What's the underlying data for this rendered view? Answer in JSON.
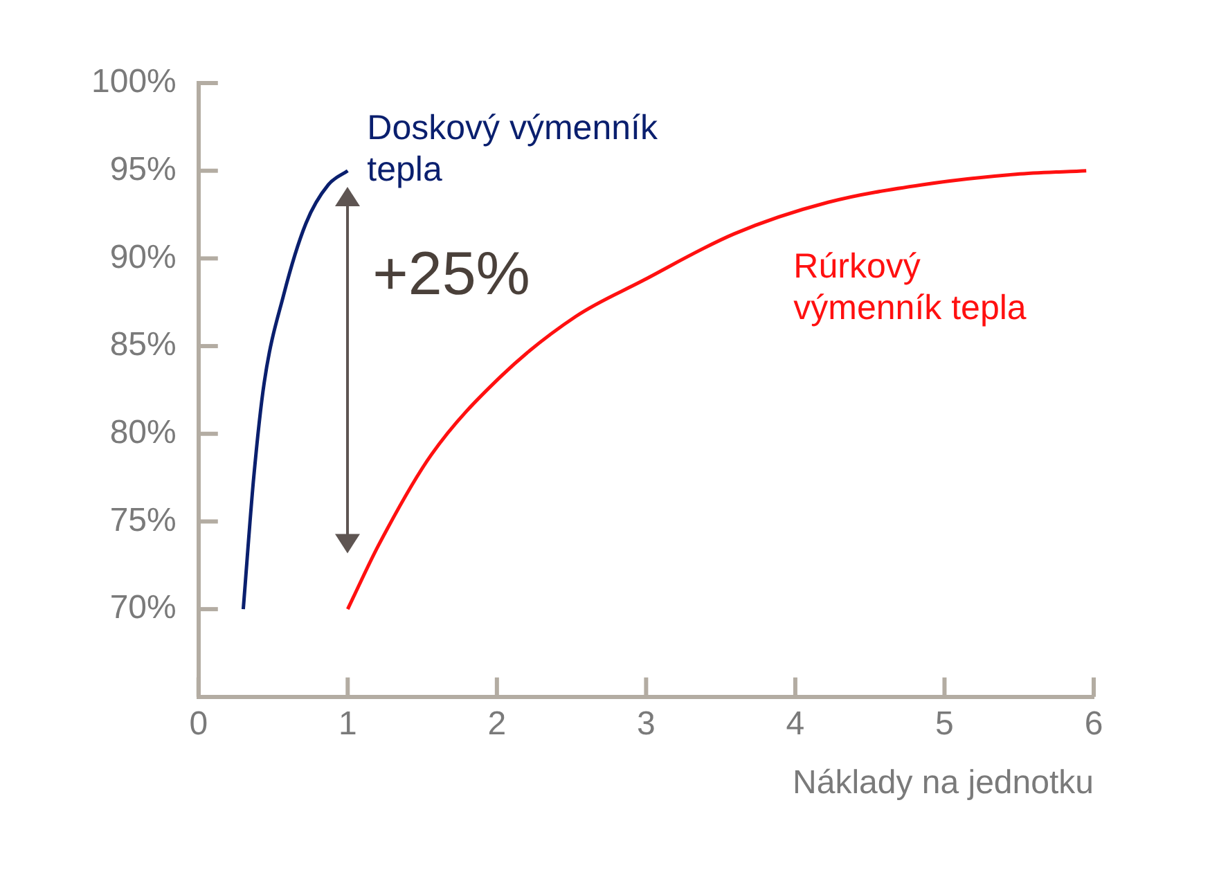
{
  "chart_data": {
    "type": "line",
    "xlabel": "Náklady na jednotku",
    "xlim": [
      0,
      6
    ],
    "xticks": [
      0,
      1,
      2,
      3,
      4,
      5,
      6
    ],
    "ylim": [
      65,
      100
    ],
    "yticks": [
      {
        "value": 70,
        "label": "70%"
      },
      {
        "value": 75,
        "label": "75%"
      },
      {
        "value": 80,
        "label": "80%"
      },
      {
        "value": 85,
        "label": "85%"
      },
      {
        "value": 90,
        "label": "90%"
      },
      {
        "value": 95,
        "label": "95%"
      },
      {
        "value": 100,
        "label": "100%"
      }
    ],
    "grid": false,
    "legend": false,
    "marker": "none",
    "line_style": "solid",
    "annotations": [
      "+25%"
    ],
    "series": [
      {
        "name": "Doskový výmenník tepla",
        "color": "#0a1f6e",
        "x": [
          0.3,
          0.37,
          0.44,
          0.57,
          0.72,
          0.87,
          1
        ],
        "values": [
          70,
          77.5,
          82.9,
          87.9,
          92,
          94.2,
          95
        ]
      },
      {
        "name": "Rúrkový výmenník tepla",
        "color": "#ff1010",
        "x": [
          1,
          1.21,
          1.56,
          2.03,
          2.53,
          2.97,
          3.59,
          4.22,
          4.85,
          5.48,
          5.95
        ],
        "values": [
          70,
          73.7,
          78.8,
          83.3,
          86.7,
          88.7,
          91.4,
          93.2,
          94.2,
          94.8,
          95
        ]
      }
    ]
  }
}
